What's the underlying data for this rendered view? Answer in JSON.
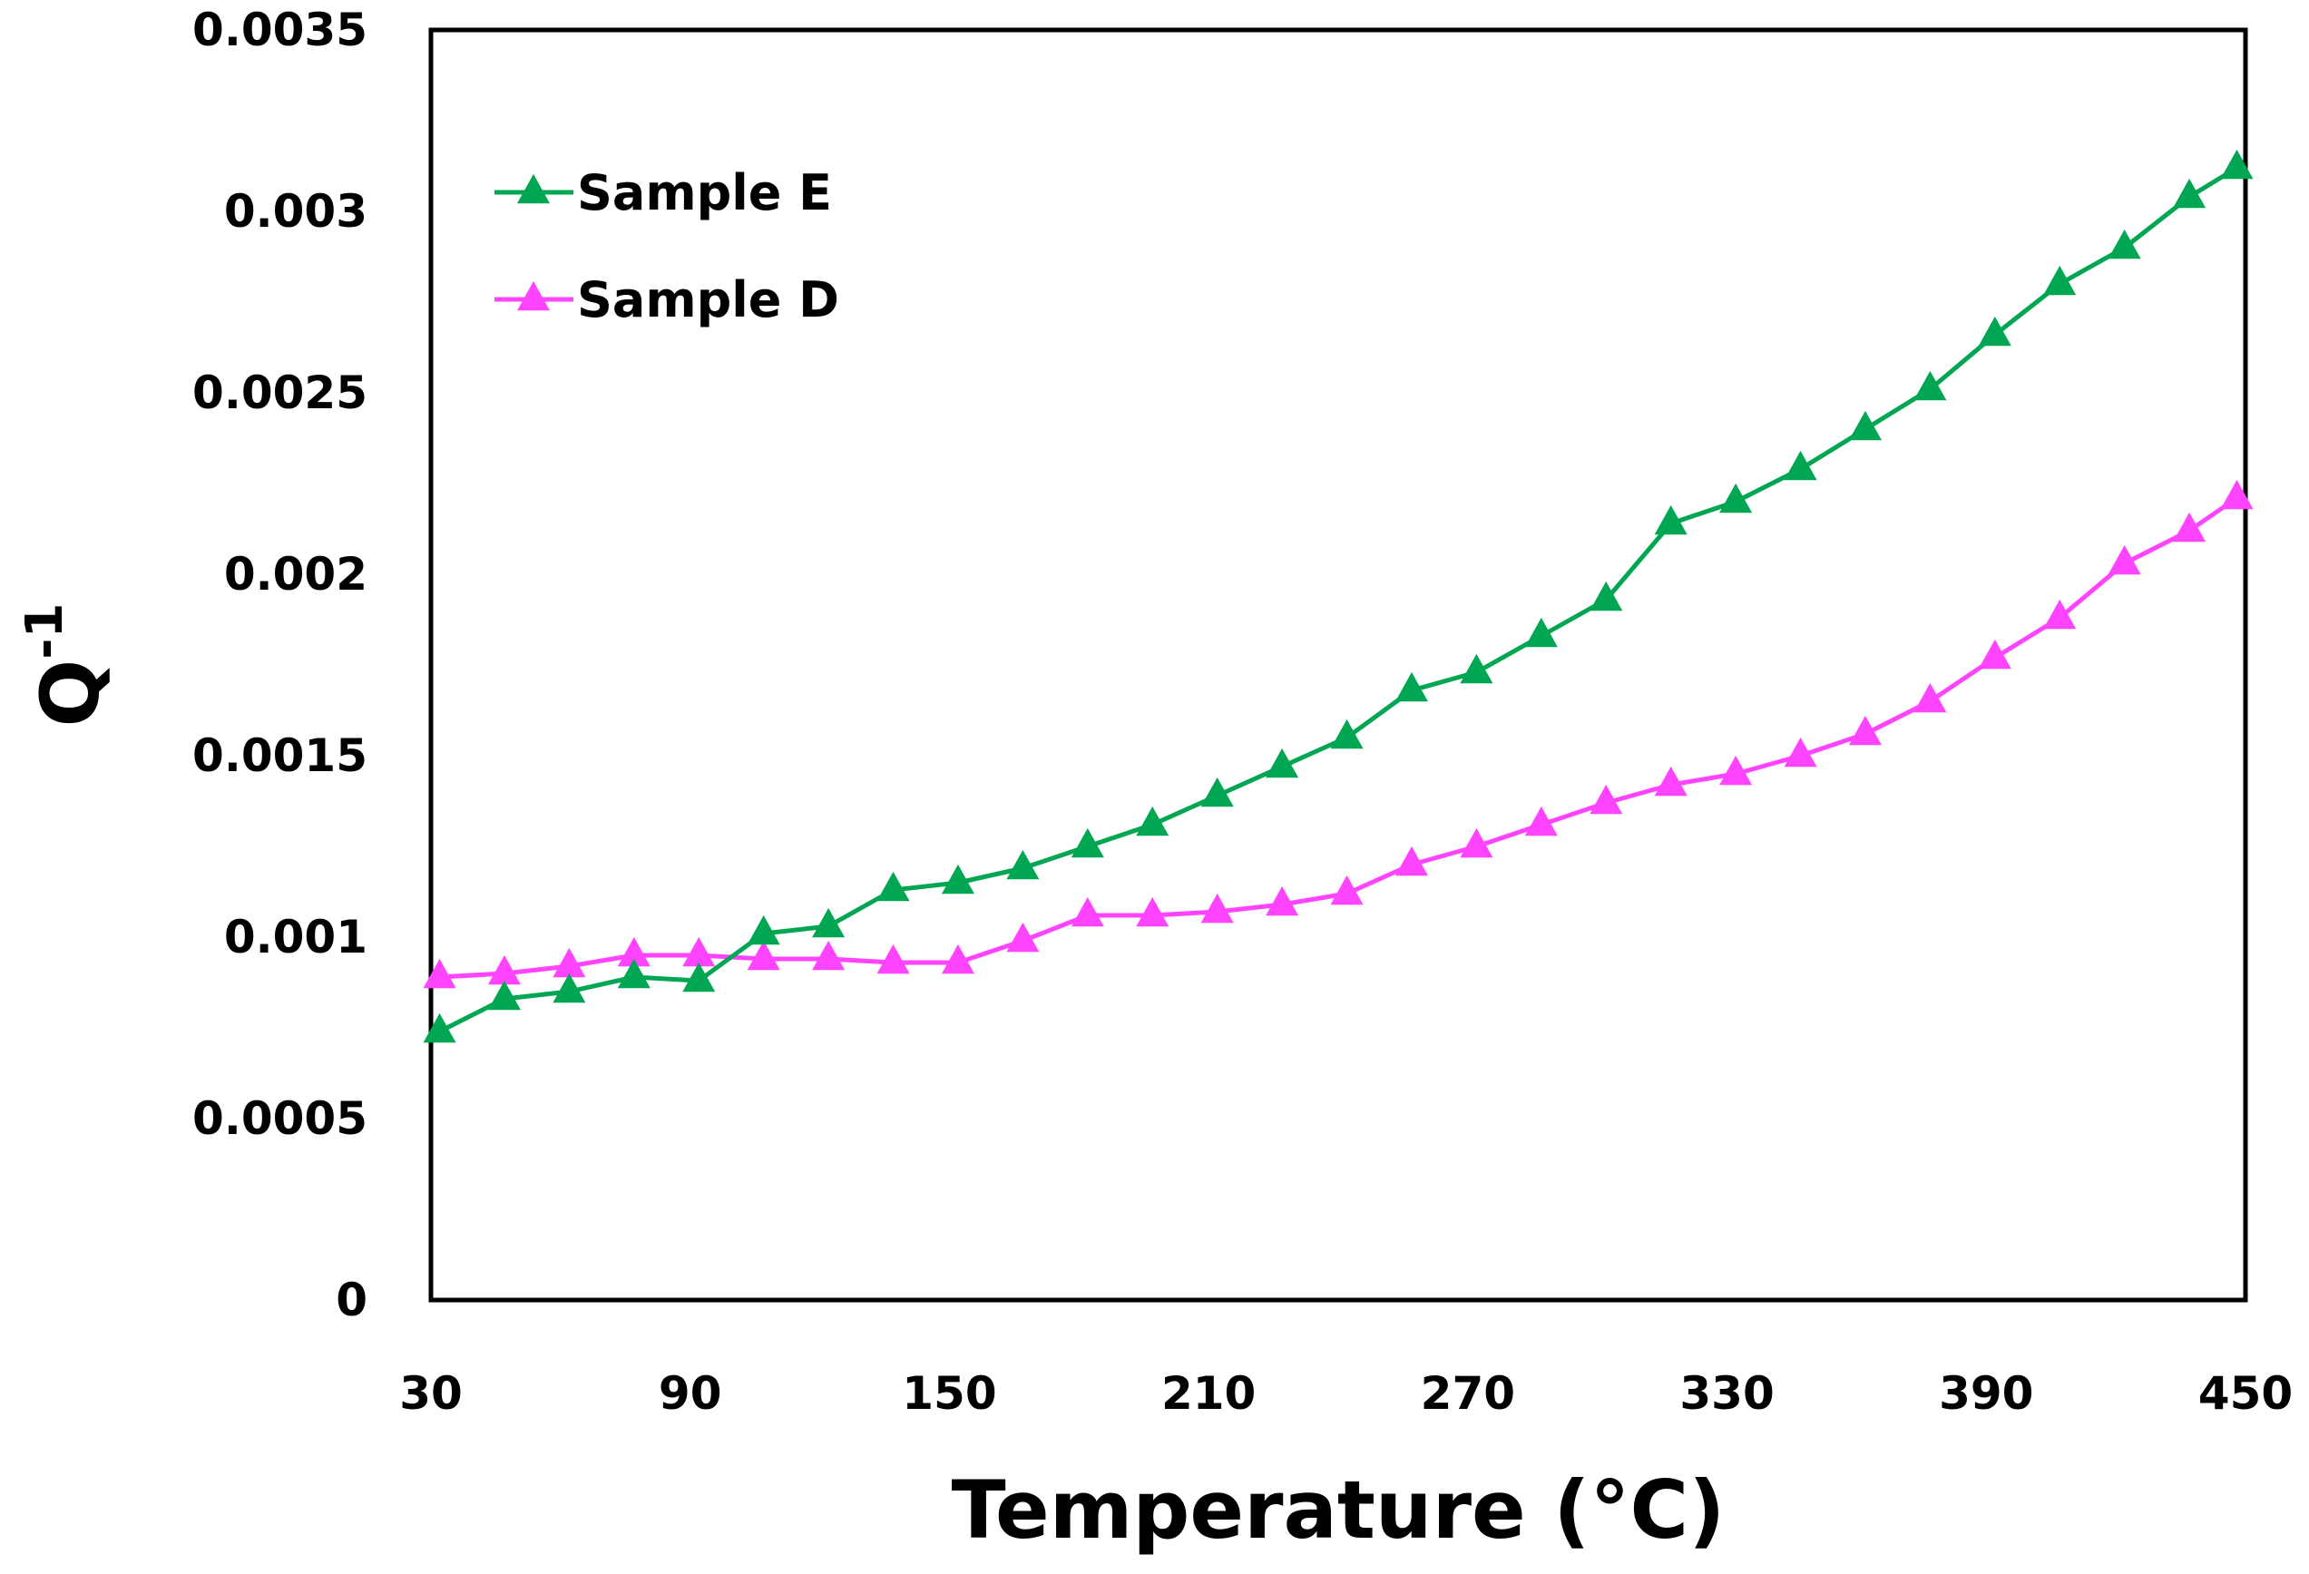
{
  "chart_data": {
    "type": "line",
    "title": "",
    "xlabel": "Temperature (°C)",
    "ylabel_base": "Q",
    "ylabel_sup": "-1",
    "xlim": [
      30,
      450
    ],
    "ylim": [
      0,
      0.0035
    ],
    "x_ticks": [
      "30",
      "90",
      "150",
      "210",
      "270",
      "330",
      "390",
      "450"
    ],
    "y_ticks": [
      "0",
      "0.0005",
      "0.001",
      "0.0015",
      "0.002",
      "0.0025",
      "0.003",
      "0.0035"
    ],
    "grid": false,
    "legend_position": "top-left",
    "x": [
      32,
      47,
      62,
      77,
      92,
      107,
      122,
      137,
      152,
      167,
      182,
      197,
      212,
      227,
      242,
      257,
      272,
      287,
      302,
      317,
      332,
      347,
      362,
      377,
      392,
      407,
      422,
      437,
      448
    ],
    "series": [
      {
        "name": "Sample E",
        "color": "#00a651",
        "marker": "triangle",
        "values": [
          0.00074,
          0.00083,
          0.00085,
          0.00089,
          0.00088,
          0.00101,
          0.00103,
          0.00113,
          0.00115,
          0.00119,
          0.00125,
          0.00131,
          0.00139,
          0.00147,
          0.00155,
          0.00168,
          0.00173,
          0.00183,
          0.00193,
          0.00214,
          0.0022,
          0.00229,
          0.0024,
          0.00251,
          0.00266,
          0.0028,
          0.0029,
          0.00304,
          0.00312
        ]
      },
      {
        "name": "Sample D",
        "color": "#ff44ff",
        "marker": "triangle",
        "values": [
          0.00089,
          0.0009,
          0.00092,
          0.00095,
          0.00095,
          0.00094,
          0.00094,
          0.00093,
          0.00093,
          0.00099,
          0.00106,
          0.00106,
          0.00107,
          0.00109,
          0.00112,
          0.0012,
          0.00125,
          0.00131,
          0.00137,
          0.00142,
          0.00145,
          0.0015,
          0.00156,
          0.00165,
          0.00177,
          0.00188,
          0.00203,
          0.00212,
          0.00221
        ]
      }
    ]
  }
}
